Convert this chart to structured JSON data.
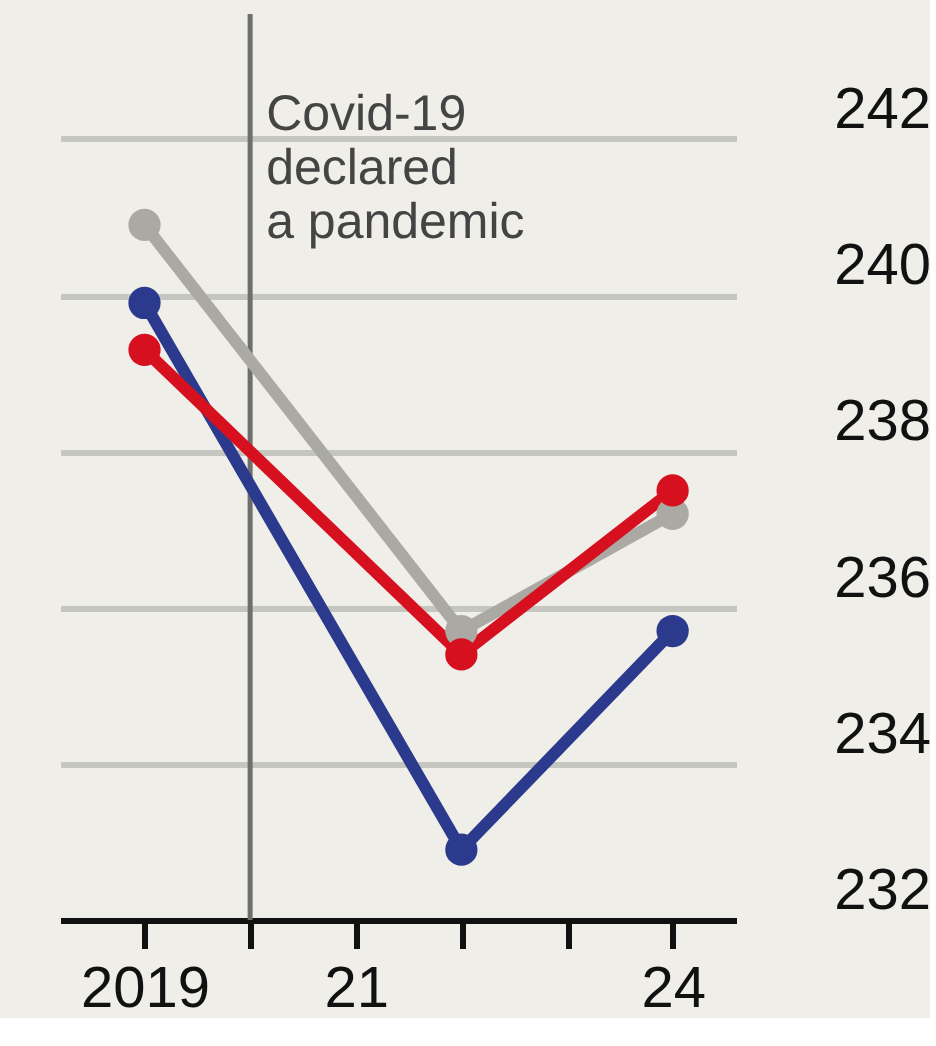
{
  "chart_data": {
    "type": "line",
    "x": [
      2019,
      2022,
      2024
    ],
    "series": [
      {
        "color": "#aaa9a3",
        "values": [
          240.9,
          235.7,
          237.2
        ]
      },
      {
        "color": "#2b3a8c",
        "values": [
          239.9,
          232.9,
          235.7
        ]
      },
      {
        "color": "#d7101f",
        "values": [
          239.3,
          235.4,
          237.5
        ]
      }
    ],
    "xlim": [
      2018.2,
      2024.6
    ],
    "xticks": [
      2019,
      {
        "value": 2020,
        "label": null
      },
      {
        "value": 2021,
        "label": "21"
      },
      {
        "value": 2022,
        "label": null
      },
      {
        "value": 2023,
        "label": null
      },
      {
        "value": 2024,
        "label": "24"
      }
    ],
    "ylim": [
      232,
      243.6
    ],
    "yticks": [
      232,
      234,
      236,
      238,
      240,
      242
    ],
    "ref_lines": [
      {
        "axis": "x",
        "value": 2020,
        "label": "Covid-19\ndeclared\na pandemic",
        "color": "#6e6e6e"
      }
    ],
    "grid": "y",
    "marker": "circle",
    "line_style": "solid"
  }
}
